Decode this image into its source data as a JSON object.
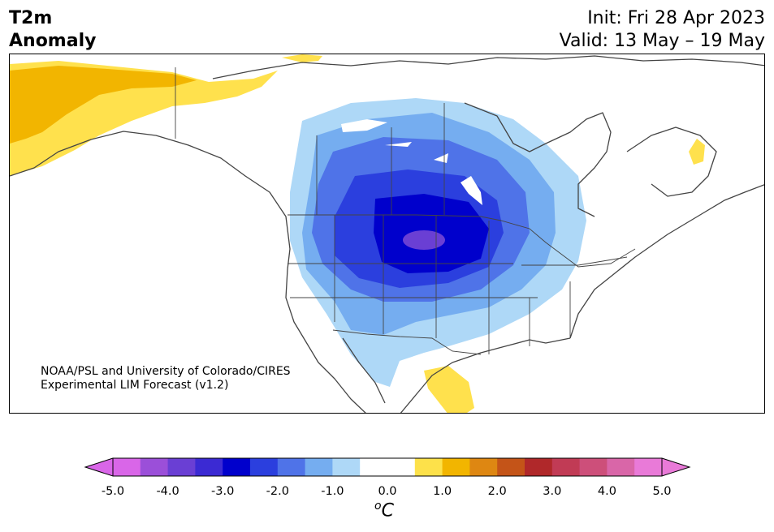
{
  "header": {
    "title_line1": "T2m",
    "title_line2": "Anomaly",
    "init_text": "Init: Fri 28 Apr 2023",
    "valid_text": "Valid: 13 May – 19 May"
  },
  "map": {
    "credit_line1": "NOAA/PSL and University of Colorado/CIRES",
    "credit_line2": "Experimental LIM Forecast (v1.2)",
    "region": "North America",
    "colors": {
      "cold_max": "#0000cc",
      "cold_core": "#6a3fd4",
      "neutral": "#ffffff",
      "warm_light": "#ffe14d",
      "warm": "#f2b500",
      "border": "#444444"
    }
  },
  "colorbar": {
    "unit_base": "o",
    "unit_letter": "C",
    "tick_labels": [
      "-5.0",
      "-4.0",
      "-3.0",
      "-2.0",
      "-1.0",
      "0.0",
      "1.0",
      "2.0",
      "3.0",
      "4.0",
      "5.0"
    ],
    "colors": [
      "#d966e8",
      "#9b4fd9",
      "#6a3fd4",
      "#3b2ad3",
      "#0000cc",
      "#2b3fde",
      "#4f73e8",
      "#75adf0",
      "#aed8f7",
      "#ffffff",
      "#ffffff",
      "#fde14a",
      "#f2b500",
      "#de8712",
      "#c45418",
      "#b0282a",
      "#c13b55",
      "#cd4f7a",
      "#d966a8",
      "#e97ad8"
    ],
    "extend_low_color": "#d966e8",
    "extend_high_color": "#e97ad8"
  }
}
